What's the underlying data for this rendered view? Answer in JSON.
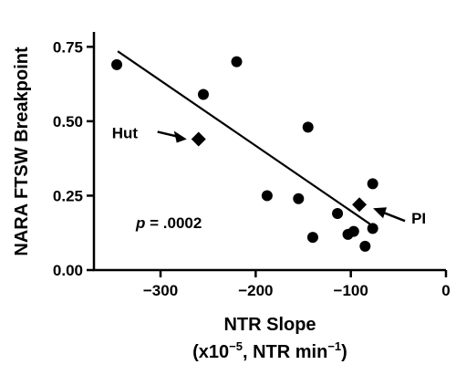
{
  "chart_data": {
    "type": "scatter",
    "title": "",
    "xlabel": "NTR Slope",
    "xlabel_units_prefix": "(x10",
    "xlabel_units_exp": "−5",
    "xlabel_units_mid": ", NTR min",
    "xlabel_units_exp2": "−1",
    "xlabel_units_suffix": ")",
    "ylabel": "NARA FTSW Breakpoint",
    "xlim": [
      -370,
      0
    ],
    "ylim": [
      0,
      0.8
    ],
    "x_ticks": [
      -300,
      -200,
      -100,
      0
    ],
    "x_tick_labels": [
      "−300",
      "−200",
      "−100",
      "0"
    ],
    "y_ticks": [
      0,
      0.25,
      0.5,
      0.75
    ],
    "y_tick_labels": [
      "0.00",
      "0.25",
      "0.50",
      "0.75"
    ],
    "grid": false,
    "series": [
      {
        "marker": "circle",
        "points": [
          {
            "x": -346,
            "y": 0.69
          },
          {
            "x": -255,
            "y": 0.59
          },
          {
            "x": -220,
            "y": 0.7
          },
          {
            "x": -145,
            "y": 0.48
          },
          {
            "x": -188,
            "y": 0.25
          },
          {
            "x": -155,
            "y": 0.24
          },
          {
            "x": -140,
            "y": 0.11
          },
          {
            "x": -114,
            "y": 0.19
          },
          {
            "x": -103,
            "y": 0.12
          },
          {
            "x": -97,
            "y": 0.13
          },
          {
            "x": -85,
            "y": 0.08
          },
          {
            "x": -77,
            "y": 0.29
          },
          {
            "x": -77,
            "y": 0.14
          }
        ]
      },
      {
        "marker": "diamond",
        "points": [
          {
            "x": -260,
            "y": 0.44
          },
          {
            "x": -91,
            "y": 0.22
          }
        ]
      }
    ],
    "trendline": {
      "x1": -345,
      "y1": 0.735,
      "x2": -80,
      "y2": 0.155
    },
    "annotations": [
      {
        "text": "Hut",
        "point_x": -260,
        "point_y": 0.44
      },
      {
        "text": "PI",
        "point_x": -91,
        "point_y": 0.22
      }
    ],
    "p_prefix": "p",
    "p_text": " = .0002"
  }
}
